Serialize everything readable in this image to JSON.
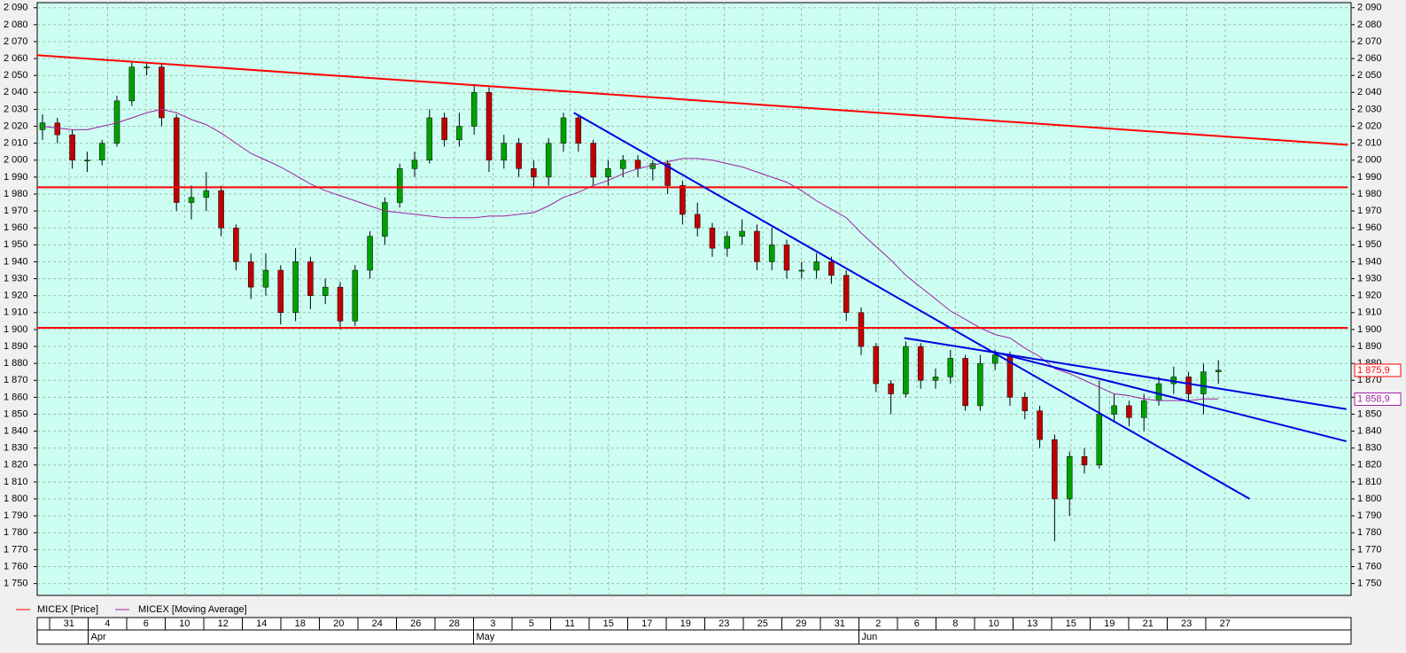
{
  "chart_data": {
    "type": "candlestick",
    "series_names": {
      "price": "MICEX [Price]",
      "ma": "MICEX [Moving Average]"
    },
    "colors": {
      "price": "#ff0000",
      "ma": "#a020a0",
      "up": "#00a000",
      "down": "#c00000",
      "background": "#ccfff2"
    },
    "opens": [
      2018,
      2022,
      2015,
      2000,
      2000,
      2010,
      2035,
      2055,
      2055,
      2025,
      1975,
      1978,
      1982,
      1960,
      1940,
      1925,
      1935,
      1910,
      1940,
      1920,
      1925,
      1905,
      1935,
      1955,
      1975,
      1995,
      2000,
      2025,
      2012,
      2020,
      2040,
      2000,
      2010,
      1995,
      1990,
      2010,
      2025,
      2010,
      1990,
      1995,
      2000,
      1995,
      1998,
      1985,
      1968,
      1960,
      1948,
      1955,
      1958,
      1940,
      1950,
      1935,
      1935,
      1940,
      1932,
      1910,
      1890,
      1868,
      1862,
      1890,
      1870,
      1872,
      1883,
      1855,
      1880,
      1885,
      1860,
      1852,
      1835,
      1800,
      1825,
      1820,
      1850,
      1855,
      1848,
      1858,
      1868,
      1872,
      1862,
      1875
    ],
    "highs": [
      2027,
      2025,
      2018,
      2005,
      2012,
      2038,
      2058,
      2058,
      2057,
      2027,
      1985,
      1993,
      1985,
      1962,
      1945,
      1945,
      1938,
      1948,
      1943,
      1930,
      1928,
      1938,
      1958,
      1978,
      1998,
      2005,
      2030,
      2028,
      2028,
      2045,
      2043,
      2015,
      2013,
      2000,
      2013,
      2028,
      2027,
      2012,
      2000,
      2003,
      2003,
      2000,
      2000,
      1988,
      1975,
      1963,
      1958,
      1965,
      1962,
      1960,
      1953,
      1940,
      1945,
      1943,
      1935,
      1913,
      1892,
      1870,
      1893,
      1892,
      1877,
      1888,
      1885,
      1885,
      1888,
      1887,
      1863,
      1855,
      1838,
      1828,
      1830,
      1870,
      1862,
      1858,
      1862,
      1872,
      1878,
      1875,
      1880,
      1882
    ],
    "lows": [
      2012,
      2010,
      1995,
      1993,
      1997,
      2008,
      2032,
      2050,
      2020,
      1970,
      1965,
      1970,
      1955,
      1935,
      1918,
      1920,
      1903,
      1905,
      1912,
      1915,
      1900,
      1902,
      1930,
      1950,
      1972,
      1990,
      1998,
      2008,
      2008,
      2015,
      1993,
      1995,
      1990,
      1984,
      1985,
      2005,
      2005,
      1985,
      1985,
      1990,
      1990,
      1988,
      1980,
      1962,
      1955,
      1943,
      1943,
      1950,
      1935,
      1935,
      1930,
      1930,
      1930,
      1927,
      1905,
      1885,
      1863,
      1850,
      1860,
      1865,
      1865,
      1868,
      1852,
      1852,
      1876,
      1855,
      1847,
      1830,
      1775,
      1790,
      1815,
      1818,
      1845,
      1843,
      1840,
      1855,
      1862,
      1858,
      1850,
      1868
    ],
    "closes": [
      2022,
      2015,
      2000,
      2000,
      2010,
      2035,
      2055,
      2055,
      2025,
      1975,
      1978,
      1982,
      1960,
      1940,
      1925,
      1935,
      1910,
      1940,
      1920,
      1925,
      1905,
      1935,
      1955,
      1975,
      1995,
      2000,
      2025,
      2012,
      2020,
      2040,
      2000,
      2010,
      1995,
      1990,
      2010,
      2025,
      2010,
      1990,
      1995,
      2000,
      1995,
      1998,
      1985,
      1968,
      1960,
      1948,
      1955,
      1958,
      1940,
      1950,
      1935,
      1935,
      1940,
      1932,
      1910,
      1890,
      1868,
      1862,
      1890,
      1870,
      1872,
      1883,
      1855,
      1880,
      1885,
      1860,
      1852,
      1835,
      1800,
      1825,
      1820,
      1850,
      1855,
      1848,
      1858,
      1868,
      1872,
      1862,
      1875,
      1876
    ],
    "ma": [
      2020,
      2019,
      2018,
      2018,
      2020,
      2022,
      2025,
      2028,
      2030,
      2028,
      2024,
      2021,
      2016,
      2010,
      2004,
      2000,
      1996,
      1991,
      1986,
      1982,
      1979,
      1976,
      1973,
      1970,
      1969,
      1968,
      1967,
      1966,
      1966,
      1966,
      1967,
      1967,
      1968,
      1969,
      1973,
      1978,
      1981,
      1985,
      1988,
      1992,
      1995,
      1997,
      1999,
      2001,
      2001,
      2000,
      1998,
      1996,
      1993,
      1990,
      1987,
      1982,
      1976,
      1971,
      1966,
      1957,
      1949,
      1941,
      1932,
      1925,
      1918,
      1911,
      1906,
      1901,
      1897,
      1895,
      1889,
      1884,
      1877,
      1874,
      1870,
      1866,
      1862,
      1861,
      1859,
      1858,
      1858,
      1858,
      1859,
      1859
    ],
    "lines": [
      {
        "color": "#ff0000",
        "x": [
          -0.4,
          87.7
        ],
        "y": [
          2062,
          2009
        ]
      },
      {
        "color": "#ff0000",
        "x": [
          -0.4,
          87.7
        ],
        "y": [
          1984,
          1984
        ]
      },
      {
        "color": "#ff0000",
        "x": [
          -0.4,
          87.7
        ],
        "y": [
          1901,
          1901
        ]
      },
      {
        "color": "#0000e0",
        "x": [
          35.7,
          81.1
        ],
        "y": [
          2028,
          1800
        ]
      },
      {
        "color": "#0000e0",
        "x": [
          57.9,
          87.6
        ],
        "y": [
          1895,
          1853
        ]
      },
      {
        "color": "#0000e0",
        "x": [
          63.8,
          87.6
        ],
        "y": [
          1887,
          1834
        ]
      }
    ],
    "price_marker": {
      "value": 1875.9,
      "label": "1 875,9"
    },
    "ma_marker": {
      "value": 1858.9,
      "label": "1 858,9"
    },
    "ylim": [
      1743,
      2093
    ],
    "yticks": [
      {
        "value": 2090,
        "label": "2 090"
      },
      {
        "value": 2080,
        "label": "2 080"
      },
      {
        "value": 2070,
        "label": "2 070"
      },
      {
        "value": 2060,
        "label": "2 060"
      },
      {
        "value": 2050,
        "label": "2 050"
      },
      {
        "value": 2040,
        "label": "2 040"
      },
      {
        "value": 2030,
        "label": "2 030"
      },
      {
        "value": 2020,
        "label": "2 020"
      },
      {
        "value": 2010,
        "label": "2 010"
      },
      {
        "value": 2000,
        "label": "2 000"
      },
      {
        "value": 1990,
        "label": "1 990"
      },
      {
        "value": 1980,
        "label": "1 980"
      },
      {
        "value": 1970,
        "label": "1 970"
      },
      {
        "value": 1960,
        "label": "1 960"
      },
      {
        "value": 1950,
        "label": "1 950"
      },
      {
        "value": 1940,
        "label": "1 940"
      },
      {
        "value": 1930,
        "label": "1 930"
      },
      {
        "value": 1920,
        "label": "1 920"
      },
      {
        "value": 1910,
        "label": "1 910"
      },
      {
        "value": 1900,
        "label": "1 900"
      },
      {
        "value": 1890,
        "label": "1 890"
      },
      {
        "value": 1880,
        "label": "1 880"
      },
      {
        "value": 1870,
        "label": "1 870"
      },
      {
        "value": 1860,
        "label": "1 860"
      },
      {
        "value": 1850,
        "label": "1 850"
      },
      {
        "value": 1840,
        "label": "1 840"
      },
      {
        "value": 1830,
        "label": "1 830"
      },
      {
        "value": 1820,
        "label": "1 820"
      },
      {
        "value": 1810,
        "label": "1 810"
      },
      {
        "value": 1800,
        "label": "1 800"
      },
      {
        "value": 1790,
        "label": "1 790"
      },
      {
        "value": 1780,
        "label": "1 780"
      },
      {
        "value": 1770,
        "label": "1 770"
      },
      {
        "value": 1760,
        "label": "1 760"
      },
      {
        "value": 1750,
        "label": "1 750"
      }
    ],
    "x_labels": [
      "31",
      "4",
      "6",
      "10",
      "12",
      "14",
      "18",
      "20",
      "24",
      "26",
      "28",
      "3",
      "5",
      "11",
      "15",
      "17",
      "19",
      "23",
      "25",
      "29",
      "31",
      "2",
      "6",
      "8",
      "10",
      "13",
      "15",
      "19",
      "21",
      "23",
      "27"
    ],
    "months": [
      null,
      "Apr",
      null,
      null,
      null,
      null,
      null,
      null,
      null,
      null,
      null,
      "May",
      null,
      null,
      null,
      null,
      null,
      null,
      null,
      null,
      null,
      "Jun",
      null,
      null,
      null,
      null,
      null,
      null,
      null,
      null,
      null
    ],
    "grid": true
  }
}
